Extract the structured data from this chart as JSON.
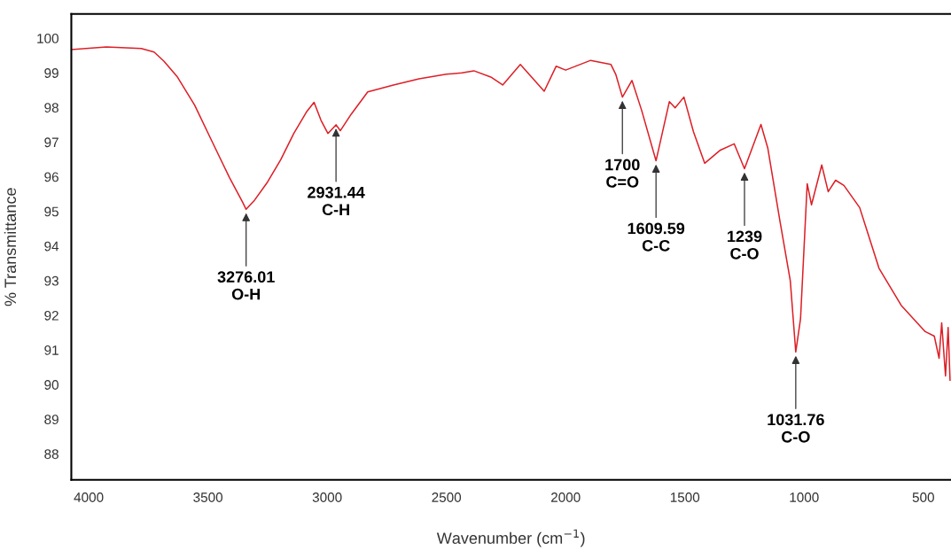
{
  "chart_data": {
    "type": "line",
    "xlabel": "Wavenumber (cm$^{−1}$)",
    "ylabel": "% Transmittance",
    "xlim": [
      4073,
      384
    ],
    "xticks": [
      4000,
      3500,
      3000,
      2500,
      2000,
      1500,
      1000,
      500
    ],
    "ylim": [
      87.25,
      100.7
    ],
    "yticks": [
      88,
      89,
      90,
      91,
      92,
      93,
      94,
      95,
      96,
      97,
      98,
      99,
      100
    ],
    "grid": false,
    "legend": false,
    "marker": "none",
    "line_style": "solid",
    "series": [
      {
        "color": "#dd1f26",
        "x": [
          4073,
          3926,
          3780,
          3726,
          3685,
          3630,
          3556,
          3485,
          3410,
          3355,
          3340,
          3305,
          3250,
          3195,
          3140,
          3085,
          3055,
          3026,
          2997,
          2963,
          2945,
          2900,
          2830,
          2722,
          2615,
          2500,
          2435,
          2385,
          2314,
          2264,
          2225,
          2190,
          2090,
          2040,
          2000,
          1895,
          1810,
          1790,
          1762,
          1722,
          1681,
          1621,
          1565,
          1541,
          1504,
          1464,
          1417,
          1351,
          1293,
          1250,
          1181,
          1152,
          1101,
          1058,
          1035,
          1015,
          987,
          969,
          926,
          899,
          868,
          833,
          767,
          686,
          593,
          492,
          454,
          434,
          423,
          407,
          396,
          388
        ],
        "values": [
          99.67,
          99.75,
          99.7,
          99.6,
          99.34,
          98.9,
          98.07,
          97.05,
          95.98,
          95.27,
          95.06,
          95.32,
          95.85,
          96.49,
          97.25,
          97.89,
          98.15,
          97.63,
          97.25,
          97.5,
          97.33,
          97.8,
          98.45,
          98.65,
          98.83,
          98.96,
          99.0,
          99.06,
          98.88,
          98.65,
          98.96,
          99.24,
          98.47,
          99.19,
          99.08,
          99.36,
          99.24,
          98.96,
          98.3,
          98.78,
          97.91,
          96.46,
          98.17,
          97.99,
          98.3,
          97.3,
          96.39,
          96.77,
          96.95,
          96.23,
          97.51,
          96.82,
          94.71,
          93.0,
          90.94,
          91.9,
          95.8,
          95.19,
          96.34,
          95.57,
          95.9,
          95.75,
          95.11,
          93.36,
          92.29,
          91.53,
          91.4,
          90.76,
          91.78,
          90.25,
          91.65,
          90.13
        ]
      }
    ],
    "annotations": [
      {
        "text": "3276.01\nO-H",
        "x": 3340,
        "y": 95.06
      },
      {
        "text": "2931.44\nC-H",
        "x": 2963,
        "y": 97.5
      },
      {
        "text": "1700\nC=O",
        "x": 1762,
        "y": 98.3
      },
      {
        "text": "1609.59\nC-C",
        "x": 1621,
        "y": 96.46
      },
      {
        "text": "1239\nC-O",
        "x": 1250,
        "y": 96.23
      },
      {
        "text": "1031.76\nC-O",
        "x": 1035,
        "y": 90.94
      }
    ]
  }
}
